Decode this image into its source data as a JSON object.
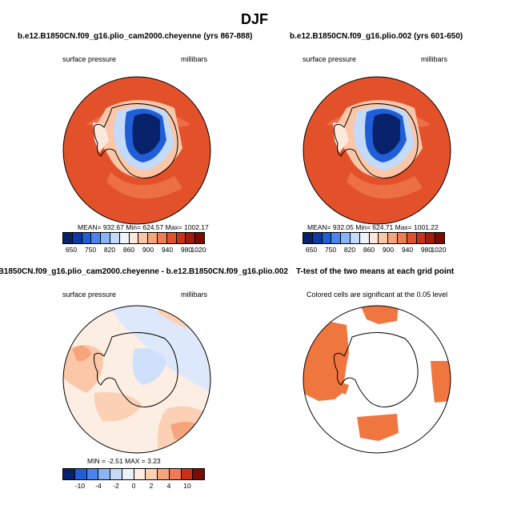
{
  "chart_data": [
    {
      "type": "heatmap",
      "title": "b.e12.B1850CN.f09_g16.plio_cam2000.cheyenne (yrs 867-888)",
      "left_label": "surface pressure",
      "right_label": "millibars",
      "variable": "surface pressure",
      "units": "millibars",
      "stats": "MEAN= 932.67   Min= 624.57   Max= 1002.17",
      "mean": 932.67,
      "min": 624.57,
      "max": 1002.17,
      "colorbar_ticks": [
        "650",
        "750",
        "820",
        "860",
        "900",
        "940",
        "980",
        "1020"
      ],
      "colorbar_colors": [
        "#08216b",
        "#0c3aa6",
        "#1f5ed6",
        "#4a84f0",
        "#8bb4f7",
        "#c3daf9",
        "#eef4fc",
        "#fde8dc",
        "#fbc7a8",
        "#f6a47c",
        "#ef7c52",
        "#e3512b",
        "#c93216",
        "#a01c0a",
        "#7a0c03"
      ]
    },
    {
      "type": "heatmap",
      "title": "b.e12.B1850CN.f09_g16.plio.002 (yrs 601-650)",
      "left_label": "surface pressure",
      "right_label": "millibars",
      "variable": "surface pressure",
      "units": "millibars",
      "stats": "MEAN= 932.05   Min= 624.71   Max= 1001.22",
      "mean": 932.05,
      "min": 624.71,
      "max": 1001.22,
      "colorbar_ticks": [
        "650",
        "750",
        "820",
        "860",
        "900",
        "940",
        "980",
        "1020"
      ],
      "colorbar_colors": [
        "#08216b",
        "#0c3aa6",
        "#1f5ed6",
        "#4a84f0",
        "#8bb4f7",
        "#c3daf9",
        "#eef4fc",
        "#fde8dc",
        "#fbc7a8",
        "#f6a47c",
        "#ef7c52",
        "#e3512b",
        "#c93216",
        "#a01c0a",
        "#7a0c03"
      ]
    },
    {
      "type": "heatmap",
      "title": "B1850CN.f09_g16.plio_cam2000.cheyenne - b.e12.B1850CN.f09_g16.plio.002",
      "left_label": "surface pressure",
      "right_label": "millibars",
      "variable": "surface pressure difference",
      "units": "millibars",
      "stats": "MIN =  -2.51  MAX =   3.23",
      "min": -2.51,
      "max": 3.23,
      "colorbar_ticks": [
        "-10",
        "-4",
        "-2",
        "0",
        "2",
        "4",
        "10"
      ],
      "colorbar_colors": [
        "#08216b",
        "#1f5ed6",
        "#4a84f0",
        "#8bb4f7",
        "#c3daf9",
        "#eaf2fd",
        "#fdeee4",
        "#fbd0b5",
        "#f6a47c",
        "#ef7c52",
        "#c93216",
        "#7a0c03"
      ]
    },
    {
      "type": "heatmap",
      "title": "T-test of the two means at each grid point",
      "left_label": "Colored cells are significant at the 0.05 level",
      "significance_level": 0.05
    }
  ],
  "figure": {
    "title": "DJF",
    "colors": {
      "land_outline": "#000000",
      "significance": "#f0763f",
      "high": "#e3512b",
      "low": "#08216b"
    }
  }
}
